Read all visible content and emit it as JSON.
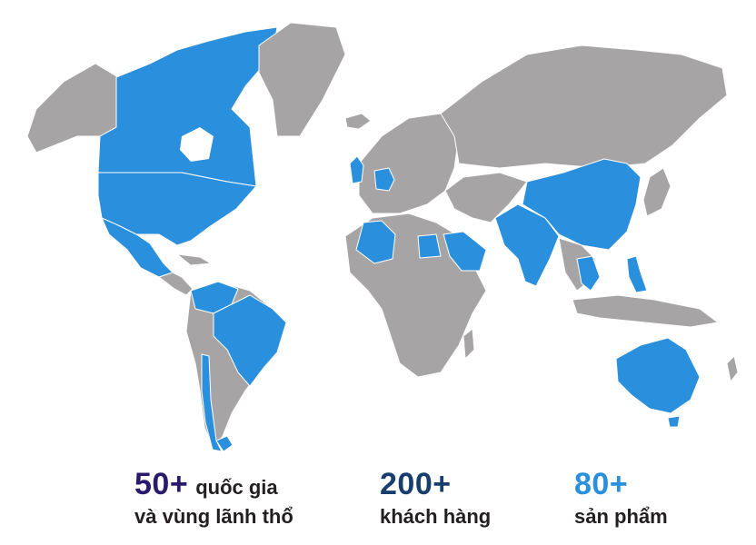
{
  "colors": {
    "land": "#a6a4a4",
    "highlight": "#2a8fdc",
    "border": "#ffffff",
    "stat_countries": "#2b1a6b",
    "stat_customers": "#173e6e",
    "stat_products": "#2a8fdc",
    "text": "#231f20"
  },
  "highlighted_regions": [
    "Canada",
    "United States",
    "Mexico",
    "Colombia",
    "Venezuela",
    "Brazil",
    "Chile",
    "Argentina",
    "United Kingdom",
    "Germany",
    "Algeria",
    "Egypt",
    "Saudi Arabia",
    "Pakistan",
    "Afghanistan",
    "India",
    "China",
    "Thailand",
    "Vietnam",
    "Philippines",
    "Australia"
  ],
  "stats": {
    "countries": {
      "number": "50+",
      "line1": "quốc gia",
      "line2": "và vùng lãnh thổ"
    },
    "customers": {
      "number": "200+",
      "line1": "khách hàng"
    },
    "products": {
      "number": "80+",
      "line1": "sản phẩm"
    }
  }
}
